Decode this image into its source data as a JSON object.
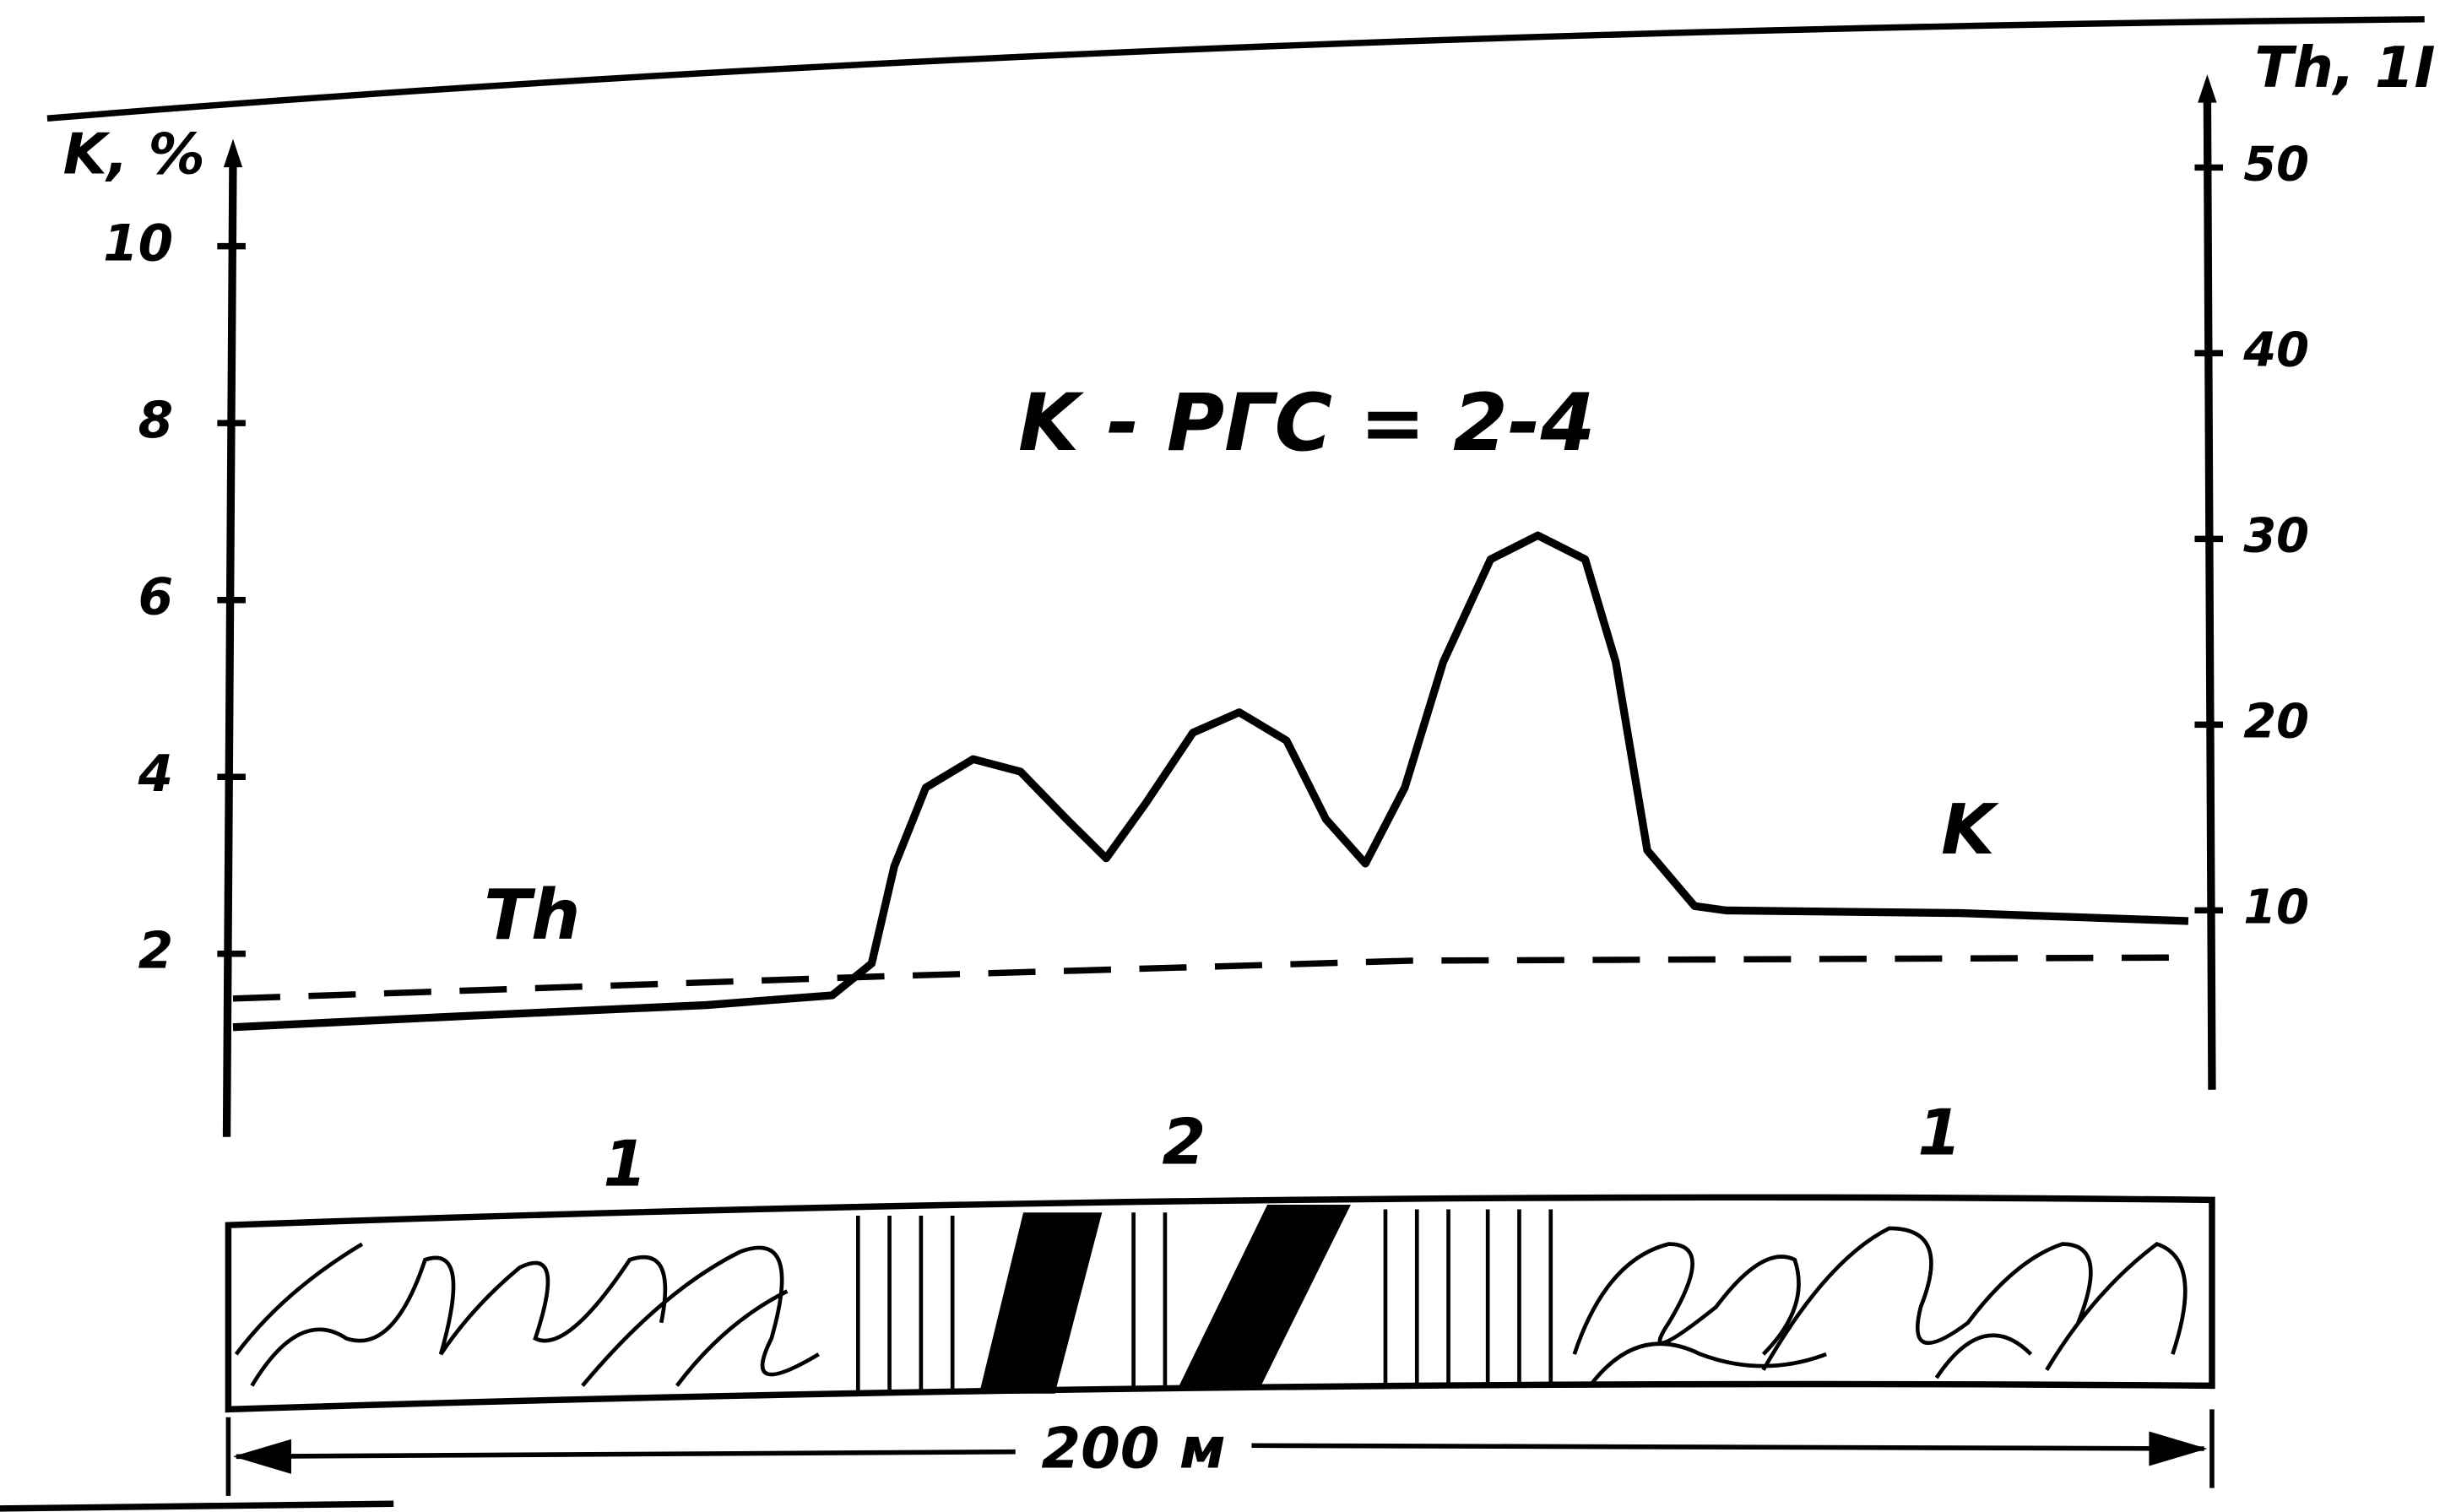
{
  "chart_data": {
    "type": "line",
    "annotation": "K - РГС = 2-4",
    "ylabel": "K, %",
    "y2label": "Th, 1I",
    "xlim": [
      0,
      200
    ],
    "ylim": [
      0,
      11
    ],
    "yticks": [
      2,
      4,
      6,
      8,
      10
    ],
    "y2lim": [
      0,
      54
    ],
    "y2ticks": [
      10,
      20,
      30,
      40,
      50
    ],
    "series": [
      {
        "name": "K",
        "color": "#000000",
        "dash": false,
        "x": [
          0,
          24.2,
          48.0,
          60.8,
          64.8,
          67.1,
          70.3,
          75.1,
          79.9,
          84.6,
          88.6,
          92.6,
          97.4,
          102.1,
          106.9,
          110.9,
          114.9,
          118.9,
          122.8,
          127.6,
          132.4,
          137.2,
          140.3,
          143.5,
          148.3,
          151.5,
          175.3,
          198.4
        ],
        "values": [
          1.17,
          1.3,
          1.42,
          1.53,
          1.89,
          2.99,
          3.88,
          4.2,
          4.06,
          3.52,
          3.08,
          3.7,
          4.5,
          4.73,
          4.41,
          3.52,
          3.02,
          3.88,
          5.3,
          6.46,
          6.73,
          6.46,
          5.3,
          3.17,
          2.54,
          2.49,
          2.46,
          2.37
        ]
      },
      {
        "name": "Th",
        "color": "#000000",
        "dash": true,
        "axis": "y2",
        "x": [
          0,
          65.6,
          119.6,
          198.4
        ],
        "values": [
          5.25,
          6.44,
          7.29,
          7.46
        ]
      }
    ],
    "zones": [
      "1",
      "2",
      "1"
    ],
    "scale_label": "200 м"
  }
}
